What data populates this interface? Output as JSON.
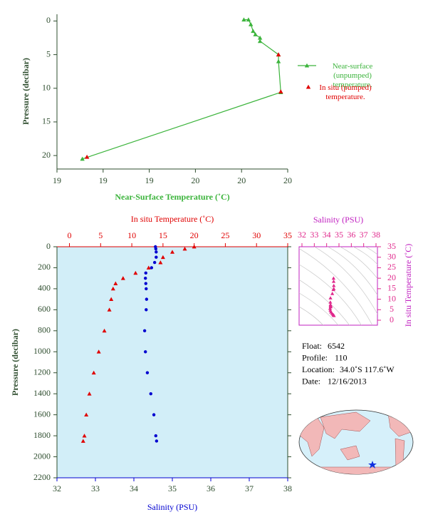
{
  "chart_data": [
    {
      "type": "line",
      "x_label": "Near-Surface Temperature (˚C)",
      "y_label": "Pressure (decibar)",
      "xlim": [
        19.0,
        20.0
      ],
      "xticks": [
        19,
        {
          "value": 19.2,
          "label": "19"
        },
        {
          "value": 19.4,
          "label": "19"
        },
        {
          "value": 19.6,
          "label": "20"
        },
        {
          "value": 19.8,
          "label": "20"
        },
        20
      ],
      "ylim": [
        -1,
        22
      ],
      "y_inverted": true,
      "yticks": [
        0,
        5,
        10,
        15,
        20
      ],
      "series": [
        {
          "name": "Near-surface (unpumped) temperature.",
          "color": "#3cb43c",
          "line": true,
          "x": [
            19.81,
            19.83,
            19.84,
            19.85,
            19.86,
            19.88,
            19.88,
            19.96,
            19.96,
            19.97,
            19.11
          ],
          "values": [
            -0.2,
            -0.2,
            0.5,
            1.5,
            2.0,
            2.5,
            3.0,
            5.0,
            6.0,
            10.6,
            20.5
          ]
        },
        {
          "name": "In situ (pumped) temperature.",
          "color": "#e00000",
          "line": false,
          "x": [
            19.96,
            19.97,
            19.13
          ],
          "values": [
            5.0,
            10.5,
            20.2
          ]
        }
      ]
    },
    {
      "type": "profile",
      "y_label": "Pressure (decibar)",
      "ylim": [
        0,
        2200
      ],
      "y_inverted": true,
      "yticks": [
        0,
        200,
        400,
        600,
        800,
        1000,
        1200,
        1400,
        1600,
        1800,
        2000,
        2200
      ],
      "x_label": "Salinity (PSU)",
      "xlim": [
        32,
        38
      ],
      "xticks": [
        32,
        33,
        34,
        35,
        36,
        37,
        38
      ],
      "x2_label": "In situ Temperature (˚C)",
      "x2lim": [
        -2,
        35
      ],
      "x2ticks": [
        0,
        5,
        10,
        15,
        20,
        25,
        30,
        35
      ],
      "background": "#d2eef8",
      "y": [
        0,
        20,
        50,
        100,
        150,
        200,
        250,
        300,
        350,
        400,
        500,
        600,
        800,
        1000,
        1200,
        1400,
        1600,
        1800,
        1850
      ],
      "series": [
        {
          "color": "#e00000",
          "marker": "triangle",
          "axis": "x2",
          "values": [
            20.0,
            18.5,
            16.5,
            15.0,
            14.6,
            12.7,
            10.6,
            8.6,
            7.4,
            7.0,
            6.7,
            6.4,
            5.6,
            4.7,
            3.9,
            3.2,
            2.7,
            2.4,
            2.2
          ]
        },
        {
          "color": "#0000d0",
          "marker": "circle",
          "axis": "x",
          "values": [
            34.56,
            34.57,
            34.58,
            34.58,
            34.54,
            34.46,
            34.31,
            34.3,
            34.31,
            34.32,
            34.33,
            34.32,
            34.28,
            34.3,
            34.35,
            34.44,
            34.52,
            34.57,
            34.59
          ]
        }
      ]
    },
    {
      "type": "ts",
      "x_label": "Salinity (PSU)",
      "xlim": [
        32,
        38
      ],
      "xticks": [
        32,
        33,
        34,
        35,
        36,
        37,
        38
      ],
      "y_label": "In situ Temperature (˚C)",
      "ylim": [
        0,
        35
      ],
      "yticks": [
        0,
        5,
        10,
        15,
        20,
        25,
        30,
        35
      ],
      "color": "#e0288c"
    }
  ],
  "float_info": [
    {
      "label": "Float:",
      "value": "6542"
    },
    {
      "label": "Profile:",
      "value": "110"
    },
    {
      "label": "Location:",
      "value": "34.0˚S  117.6˚W"
    },
    {
      "label": "Date:",
      "value": "12/16/2013"
    }
  ]
}
